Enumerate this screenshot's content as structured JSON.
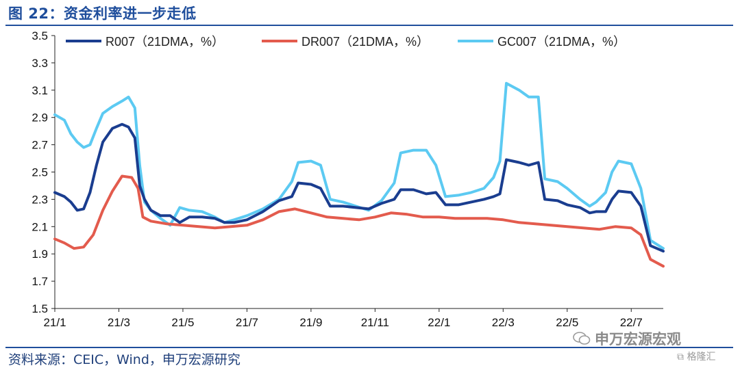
{
  "header": {
    "title": "图 22：资金利率进一步走低"
  },
  "footer": {
    "source": "资料来源：CEIC，Wind，申万宏源研究",
    "watermark": "申万宏源宏观",
    "corner_mark": "格隆汇"
  },
  "chart_data": {
    "type": "line",
    "title": "",
    "xlabel": "",
    "ylabel": "",
    "ylim": [
      1.5,
      3.5
    ],
    "yticks": [
      "3.5",
      "3.3",
      "3.1",
      "2.9",
      "2.7",
      "2.5",
      "2.3",
      "2.1",
      "1.9",
      "1.7",
      "1.5"
    ],
    "xticks": [
      "21/1",
      "21/3",
      "21/5",
      "21/7",
      "21/9",
      "21/11",
      "22/1",
      "22/3",
      "22/5",
      "22/7"
    ],
    "grid": false,
    "legend_position": "top",
    "x_range": [
      0,
      19
    ],
    "series": [
      {
        "name": "R007（21DMA，%）",
        "color": "#1a3d8f",
        "points": [
          [
            0,
            2.35
          ],
          [
            0.3,
            2.32
          ],
          [
            0.5,
            2.28
          ],
          [
            0.7,
            2.22
          ],
          [
            0.9,
            2.23
          ],
          [
            1.1,
            2.35
          ],
          [
            1.3,
            2.55
          ],
          [
            1.5,
            2.72
          ],
          [
            1.8,
            2.82
          ],
          [
            2.1,
            2.85
          ],
          [
            2.3,
            2.83
          ],
          [
            2.5,
            2.75
          ],
          [
            2.65,
            2.4
          ],
          [
            2.8,
            2.3
          ],
          [
            3.0,
            2.22
          ],
          [
            3.3,
            2.18
          ],
          [
            3.6,
            2.18
          ],
          [
            3.9,
            2.13
          ],
          [
            4.2,
            2.17
          ],
          [
            4.6,
            2.17
          ],
          [
            5.0,
            2.16
          ],
          [
            5.3,
            2.13
          ],
          [
            5.6,
            2.13
          ],
          [
            6.0,
            2.15
          ],
          [
            6.5,
            2.21
          ],
          [
            7.0,
            2.29
          ],
          [
            7.4,
            2.32
          ],
          [
            7.6,
            2.42
          ],
          [
            8.0,
            2.41
          ],
          [
            8.3,
            2.38
          ],
          [
            8.6,
            2.25
          ],
          [
            9.0,
            2.25
          ],
          [
            9.4,
            2.24
          ],
          [
            9.8,
            2.23
          ],
          [
            10.2,
            2.27
          ],
          [
            10.6,
            2.3
          ],
          [
            10.8,
            2.37
          ],
          [
            11.2,
            2.37
          ],
          [
            11.6,
            2.34
          ],
          [
            11.9,
            2.35
          ],
          [
            12.2,
            2.26
          ],
          [
            12.6,
            2.26
          ],
          [
            13.0,
            2.28
          ],
          [
            13.4,
            2.3
          ],
          [
            13.7,
            2.32
          ],
          [
            13.9,
            2.34
          ],
          [
            14.1,
            2.59
          ],
          [
            14.5,
            2.57
          ],
          [
            14.8,
            2.55
          ],
          [
            15.1,
            2.57
          ],
          [
            15.3,
            2.3
          ],
          [
            15.7,
            2.29
          ],
          [
            16.0,
            2.26
          ],
          [
            16.4,
            2.24
          ],
          [
            16.7,
            2.2
          ],
          [
            16.9,
            2.21
          ],
          [
            17.2,
            2.21
          ],
          [
            17.4,
            2.3
          ],
          [
            17.6,
            2.36
          ],
          [
            18.0,
            2.35
          ],
          [
            18.3,
            2.25
          ],
          [
            18.6,
            1.96
          ],
          [
            19.0,
            1.92
          ]
        ]
      },
      {
        "name": "DR007（21DMA，%）",
        "color": "#e35b4d",
        "points": [
          [
            0,
            2.01
          ],
          [
            0.3,
            1.98
          ],
          [
            0.6,
            1.94
          ],
          [
            0.9,
            1.95
          ],
          [
            1.2,
            2.04
          ],
          [
            1.5,
            2.22
          ],
          [
            1.8,
            2.36
          ],
          [
            2.1,
            2.47
          ],
          [
            2.4,
            2.46
          ],
          [
            2.6,
            2.38
          ],
          [
            2.75,
            2.17
          ],
          [
            3.0,
            2.14
          ],
          [
            3.5,
            2.12
          ],
          [
            4.0,
            2.11
          ],
          [
            4.5,
            2.1
          ],
          [
            5.0,
            2.09
          ],
          [
            5.5,
            2.1
          ],
          [
            6.0,
            2.11
          ],
          [
            6.5,
            2.15
          ],
          [
            7.0,
            2.21
          ],
          [
            7.5,
            2.23
          ],
          [
            8.0,
            2.2
          ],
          [
            8.5,
            2.17
          ],
          [
            9.0,
            2.16
          ],
          [
            9.5,
            2.15
          ],
          [
            10.0,
            2.17
          ],
          [
            10.5,
            2.2
          ],
          [
            11.0,
            2.19
          ],
          [
            11.5,
            2.17
          ],
          [
            12.0,
            2.17
          ],
          [
            12.5,
            2.16
          ],
          [
            13.0,
            2.16
          ],
          [
            13.5,
            2.16
          ],
          [
            14.0,
            2.15
          ],
          [
            14.5,
            2.13
          ],
          [
            15.0,
            2.12
          ],
          [
            15.5,
            2.11
          ],
          [
            16.0,
            2.1
          ],
          [
            16.5,
            2.09
          ],
          [
            17.0,
            2.08
          ],
          [
            17.5,
            2.1
          ],
          [
            18.0,
            2.09
          ],
          [
            18.3,
            2.04
          ],
          [
            18.6,
            1.86
          ],
          [
            19.0,
            1.81
          ]
        ]
      },
      {
        "name": "GC007（21DMA，%）",
        "color": "#5ccaf2",
        "points": [
          [
            0,
            2.92
          ],
          [
            0.3,
            2.88
          ],
          [
            0.5,
            2.78
          ],
          [
            0.7,
            2.72
          ],
          [
            0.9,
            2.68
          ],
          [
            1.1,
            2.7
          ],
          [
            1.3,
            2.82
          ],
          [
            1.5,
            2.93
          ],
          [
            1.8,
            2.98
          ],
          [
            2.1,
            3.02
          ],
          [
            2.3,
            3.05
          ],
          [
            2.5,
            2.97
          ],
          [
            2.65,
            2.55
          ],
          [
            2.8,
            2.28
          ],
          [
            3.0,
            2.22
          ],
          [
            3.3,
            2.16
          ],
          [
            3.6,
            2.11
          ],
          [
            3.9,
            2.24
          ],
          [
            4.2,
            2.22
          ],
          [
            4.6,
            2.21
          ],
          [
            5.0,
            2.17
          ],
          [
            5.3,
            2.13
          ],
          [
            5.6,
            2.15
          ],
          [
            6.0,
            2.18
          ],
          [
            6.5,
            2.23
          ],
          [
            7.0,
            2.3
          ],
          [
            7.4,
            2.43
          ],
          [
            7.6,
            2.57
          ],
          [
            8.0,
            2.58
          ],
          [
            8.3,
            2.55
          ],
          [
            8.6,
            2.3
          ],
          [
            9.0,
            2.28
          ],
          [
            9.4,
            2.25
          ],
          [
            9.8,
            2.22
          ],
          [
            10.2,
            2.29
          ],
          [
            10.6,
            2.42
          ],
          [
            10.8,
            2.64
          ],
          [
            11.2,
            2.66
          ],
          [
            11.6,
            2.66
          ],
          [
            11.9,
            2.55
          ],
          [
            12.2,
            2.32
          ],
          [
            12.6,
            2.33
          ],
          [
            13.0,
            2.35
          ],
          [
            13.4,
            2.38
          ],
          [
            13.7,
            2.46
          ],
          [
            13.9,
            2.58
          ],
          [
            14.1,
            3.15
          ],
          [
            14.5,
            3.1
          ],
          [
            14.8,
            3.05
          ],
          [
            15.1,
            3.05
          ],
          [
            15.3,
            2.45
          ],
          [
            15.7,
            2.43
          ],
          [
            16.0,
            2.38
          ],
          [
            16.4,
            2.3
          ],
          [
            16.7,
            2.25
          ],
          [
            16.9,
            2.28
          ],
          [
            17.2,
            2.35
          ],
          [
            17.4,
            2.5
          ],
          [
            17.6,
            2.58
          ],
          [
            18.0,
            2.56
          ],
          [
            18.3,
            2.38
          ],
          [
            18.6,
            2.0
          ],
          [
            19.0,
            1.94
          ]
        ]
      }
    ]
  }
}
